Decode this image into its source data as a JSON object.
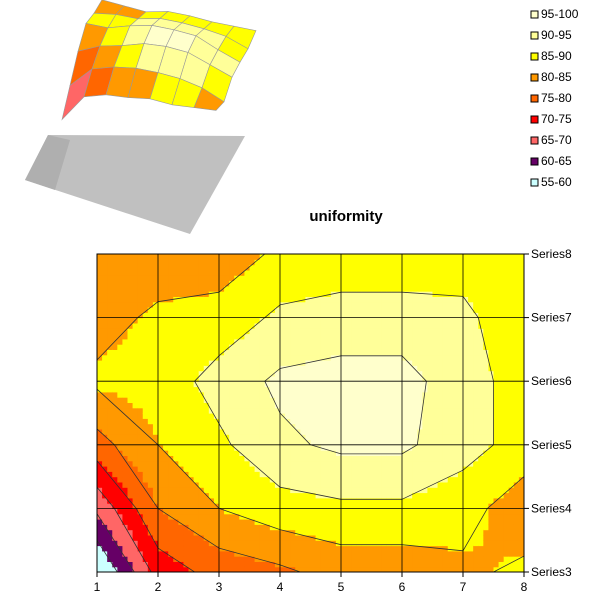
{
  "chart_data": {
    "type": "heatmap",
    "subtype": "contour",
    "title": "uniformity",
    "xlabel": "",
    "ylabel": "",
    "x": [
      1,
      2,
      3,
      4,
      5,
      6,
      7,
      8
    ],
    "xlim": [
      1,
      8
    ],
    "y_categories": [
      "Series3",
      "Series4",
      "Series5",
      "Series6",
      "Series7",
      "Series8"
    ],
    "grid": true,
    "legend_position": "top-right",
    "legend": [
      {
        "label": "95-100",
        "color": "#FFFFCC"
      },
      {
        "label": "90-95",
        "color": "#FFFF99"
      },
      {
        "label": "85-90",
        "color": "#FFFF00"
      },
      {
        "label": "80-85",
        "color": "#FF9900"
      },
      {
        "label": "75-80",
        "color": "#FF6600"
      },
      {
        "label": "70-75",
        "color": "#FF0000"
      },
      {
        "label": "65-70",
        "color": "#FF6666"
      },
      {
        "label": "60-65",
        "color": "#660066"
      },
      {
        "label": "55-60",
        "color": "#CCFFFF"
      }
    ],
    "values": [
      [
        54,
        72,
        77,
        79,
        82,
        82,
        84,
        86
      ],
      [
        66,
        80,
        85,
        88,
        89,
        89,
        87,
        82
      ],
      [
        78,
        85,
        89,
        94,
        96,
        96,
        92,
        88
      ],
      [
        86,
        87,
        92,
        96,
        97,
        97,
        92,
        88
      ],
      [
        83,
        86,
        87,
        91,
        92,
        92,
        91,
        87
      ],
      [
        82,
        82,
        82,
        86,
        87,
        87,
        88,
        89
      ]
    ]
  },
  "colors": {
    "background": "#FFFFFF",
    "floor": "#C0C0C0",
    "gridline": "#000000"
  }
}
